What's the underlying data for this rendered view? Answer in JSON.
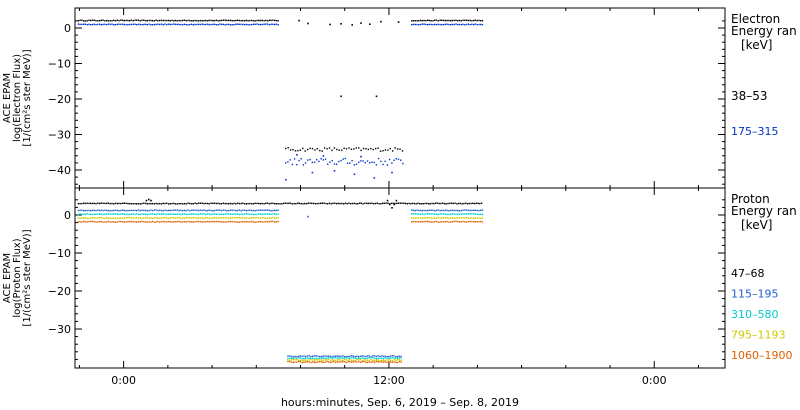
{
  "chart_data": [
    {
      "type": "scatter",
      "panel": "top",
      "ylabel_lines": [
        "ACE EPAM",
        "log(Electron Flux)",
        "[1/(cm²s ster MeV)]"
      ],
      "legend_title_lines": [
        "Electron",
        "Energy ran",
        "[keV]"
      ],
      "yticks": [
        "0",
        "−10",
        "−20",
        "−30",
        "−40"
      ],
      "ylim": [
        -45,
        3
      ],
      "series": [
        {
          "name": "38–53",
          "color": "#000000",
          "segments": [
            {
              "x0": -4.0,
              "x1": 7.0,
              "y": 2.3,
              "jitter": 0.1,
              "every": 0.08
            },
            {
              "x0": 7.3,
              "x1": 12.6,
              "y": -34.0,
              "jitter": 0.5,
              "every": 0.11
            },
            {
              "x0": 13.0,
              "x1": 16.2,
              "y": 2.3,
              "jitter": 0.1,
              "every": 0.08
            }
          ],
          "extra_points": [
            [
              7.9,
              2.3
            ],
            [
              8.3,
              1.5
            ],
            [
              9.3,
              1.2
            ],
            [
              9.8,
              1.4
            ],
            [
              10.3,
              1.1
            ],
            [
              10.7,
              1.6
            ],
            [
              11.1,
              1.3
            ],
            [
              11.6,
              2.0
            ],
            [
              12.4,
              1.9
            ],
            [
              9.8,
              -19.0
            ],
            [
              11.4,
              -19.0
            ]
          ]
        },
        {
          "name": "175–315",
          "color": "#0033cc",
          "segments": [
            {
              "x0": -4.0,
              "x1": 7.0,
              "y": 1.2,
              "jitter": 0.1,
              "every": 0.08
            },
            {
              "x0": 7.3,
              "x1": 12.6,
              "y": -37.5,
              "jitter": 1.0,
              "every": 0.1
            },
            {
              "x0": 13.0,
              "x1": 16.2,
              "y": 1.2,
              "jitter": 0.1,
              "every": 0.08
            }
          ],
          "extra_points": [
            [
              7.3,
              -42.5
            ],
            [
              8.5,
              -40.5
            ],
            [
              9.5,
              -40.0
            ],
            [
              10.4,
              -41.0
            ],
            [
              11.3,
              -42.0
            ],
            [
              12.1,
              -40.5
            ],
            [
              7.8,
              -35.5
            ],
            [
              9.0,
              -35.8
            ],
            [
              10.7,
              -36.0
            ]
          ]
        }
      ]
    },
    {
      "type": "scatter",
      "panel": "bottom",
      "ylabel_lines": [
        "ACE EPAM",
        "log(Proton Flux)",
        "[1/(cm²s ster MeV)]"
      ],
      "legend_title_lines": [
        "Proton",
        "Energy ran",
        "[keV]"
      ],
      "yticks": [
        "0",
        "−10",
        "−20",
        "−30"
      ],
      "ylim": [
        -39,
        4
      ],
      "xticks": [
        "0:00",
        "12:00",
        "0:00"
      ],
      "xtick_values": [
        0,
        12,
        24
      ],
      "xlim": [
        -2.2,
        27.2
      ],
      "xlabel": "hours:minutes, Sep.  6, 2019 – Sep.  8, 2019",
      "series": [
        {
          "name": "47–68",
          "color": "#000000",
          "segments": [
            {
              "x0": -4.0,
              "x1": 16.2,
              "y": 3.2,
              "jitter": 0.1,
              "every": 0.08
            }
          ],
          "extra_points": [
            [
              1.0,
              4.0
            ],
            [
              1.1,
              4.3
            ],
            [
              1.2,
              4.0
            ],
            [
              11.9,
              4.0
            ],
            [
              12.0,
              3.0
            ],
            [
              12.1,
              2.1
            ],
            [
              12.2,
              3.0
            ],
            [
              12.3,
              4.0
            ]
          ]
        },
        {
          "name": "115–195",
          "color": "#1f5fd6",
          "segments": [
            {
              "x0": -4.0,
              "x1": 7.0,
              "y": 1.4,
              "jitter": 0.1,
              "every": 0.08
            },
            {
              "x0": 7.4,
              "x1": 12.6,
              "y": -37.0,
              "jitter": 0.15,
              "every": 0.08
            },
            {
              "x0": 13.0,
              "x1": 16.2,
              "y": 1.4,
              "jitter": 0.1,
              "every": 0.08
            }
          ],
          "extra_points": [
            [
              8.3,
              -0.2
            ]
          ]
        },
        {
          "name": "310–580",
          "color": "#00cccc",
          "segments": [
            {
              "x0": -4.0,
              "x1": 7.0,
              "y": 0.4,
              "jitter": 0.1,
              "every": 0.08
            },
            {
              "x0": 7.4,
              "x1": 12.6,
              "y": -37.5,
              "jitter": 0.15,
              "every": 0.08
            },
            {
              "x0": 13.0,
              "x1": 16.2,
              "y": 0.4,
              "jitter": 0.1,
              "every": 0.08
            }
          ],
          "extra_points": []
        },
        {
          "name": "795–1193",
          "color": "#cccc00",
          "segments": [
            {
              "x0": -4.0,
              "x1": 7.0,
              "y": -0.6,
              "jitter": 0.1,
              "every": 0.08
            },
            {
              "x0": 7.4,
              "x1": 12.6,
              "y": -38.0,
              "jitter": 0.15,
              "every": 0.08
            },
            {
              "x0": 13.0,
              "x1": 16.2,
              "y": -0.6,
              "jitter": 0.1,
              "every": 0.08
            }
          ],
          "extra_points": []
        },
        {
          "name": "1060–1900",
          "color": "#e06000",
          "segments": [
            {
              "x0": -4.0,
              "x1": 7.0,
              "y": -1.6,
              "jitter": 0.1,
              "every": 0.08
            },
            {
              "x0": 7.4,
              "x1": 12.6,
              "y": -38.5,
              "jitter": 0.15,
              "every": 0.08
            },
            {
              "x0": 13.0,
              "x1": 16.2,
              "y": -1.6,
              "jitter": 0.1,
              "every": 0.08
            }
          ],
          "extra_points": []
        }
      ]
    }
  ]
}
